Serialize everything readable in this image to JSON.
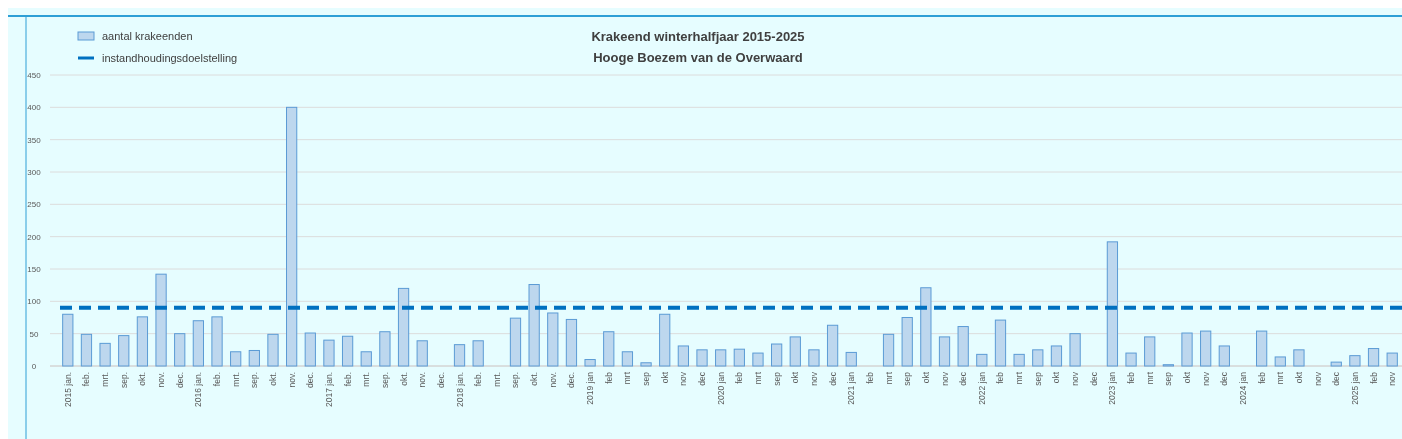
{
  "chart_data": {
    "type": "bar",
    "title": "Krakeend winterhalfjaar 2015-2025",
    "subtitle": "Hooge Boezem van de Overwaard",
    "categories": [
      "2015 jan.",
      "feb.",
      "mrt.",
      "sep.",
      "okt.",
      "nov.",
      "dec.",
      "2016 jan.",
      "feb.",
      "mrt.",
      "sep.",
      "okt.",
      "nov.",
      "dec.",
      "2017 jan.",
      "feb.",
      "mrt.",
      "sep.",
      "okt.",
      "nov.",
      "dec.",
      "2018 jan.",
      "feb.",
      "mrt.",
      "sep.",
      "okt.",
      "nov.",
      "dec.",
      "2019 jan",
      "feb",
      "mrt",
      "sep",
      "okt",
      "nov",
      "dec",
      "2020 jan",
      "feb",
      "mrt",
      "sep",
      "okt",
      "nov",
      "dec",
      "2021 jan",
      "feb",
      "mrt",
      "sep",
      "okt",
      "nov",
      "dec",
      "2022 jan",
      "feb",
      "mrt",
      "sep",
      "okt",
      "nov",
      "dec",
      "2023 jan",
      "feb",
      "mrt",
      "sep",
      "okt",
      "nov",
      "dec",
      "2024 jan",
      "feb",
      "mrt",
      "okt",
      "nov",
      "dec",
      "2025 jan",
      "feb",
      "nov"
    ],
    "series": [
      {
        "name": "aantal krakeenden",
        "color": "#bdd7ee",
        "values": [
          80,
          49,
          35,
          47,
          76,
          142,
          50,
          70,
          76,
          22,
          24,
          49,
          400,
          51,
          40,
          46,
          22,
          53,
          120,
          39,
          null,
          33,
          39,
          null,
          74,
          126,
          82,
          72,
          10,
          53,
          22,
          5,
          80,
          31,
          25,
          25,
          26,
          20,
          34,
          45,
          25,
          63,
          21,
          null,
          49,
          75,
          121,
          45,
          61,
          18,
          71,
          18,
          25,
          31,
          50,
          null,
          192,
          20,
          45,
          2,
          51,
          54,
          31,
          null,
          54,
          14,
          25,
          null,
          6,
          16,
          27,
          20
        ]
      }
    ],
    "ylim": [
      0,
      450
    ],
    "yticks": [
      0,
      50,
      100,
      150,
      200,
      250,
      300,
      350,
      400,
      450
    ],
    "grid": "y",
    "legend": "top left",
    "ref_lines": [
      {
        "axis": "y",
        "value": 90,
        "label": "instandhoudingsdoelstelling",
        "color": "#0070c0",
        "line_style": "dashed"
      }
    ]
  }
}
